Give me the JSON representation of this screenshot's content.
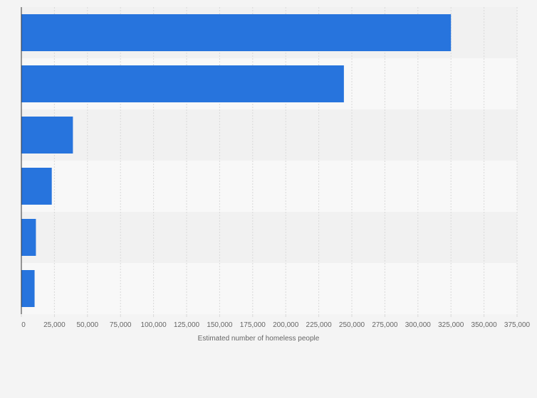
{
  "chart_data": {
    "type": "bar",
    "orientation": "horizontal",
    "categories": [
      "",
      "",
      "",
      "",
      "",
      ""
    ],
    "values": [
      325000,
      244000,
      39000,
      23000,
      11000,
      10000
    ],
    "xlabel": "Estimated number of homeless people",
    "ylabel": "",
    "xlim": [
      0,
      375000
    ],
    "x_ticks": [
      0,
      25000,
      50000,
      75000,
      100000,
      125000,
      150000,
      175000,
      200000,
      225000,
      250000,
      275000,
      300000,
      325000,
      350000,
      375000
    ],
    "x_tick_labels": [
      "0",
      "25,000",
      "50,000",
      "75,000",
      "100,000",
      "125,000",
      "150,000",
      "175,000",
      "200,000",
      "225,000",
      "250,000",
      "275,000",
      "300,000",
      "325,000",
      "350,000",
      "375,000"
    ],
    "grid": true,
    "colors": {
      "bar": "#2774dd",
      "band_dark": "#f1f1f1",
      "band_light": "#f8f8f8",
      "grid": "#d9d9d9",
      "axis": "#333333",
      "text": "#666666"
    }
  }
}
